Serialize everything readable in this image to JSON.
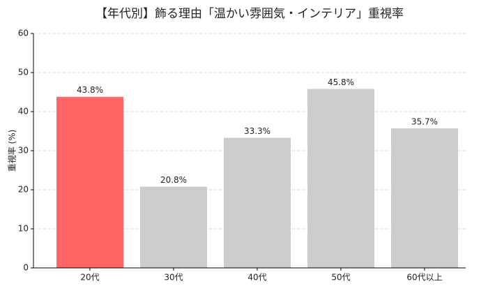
{
  "chart_data": {
    "type": "bar",
    "title": "【年代別】飾る理由「温かい雰囲気・インテリア」重視率",
    "y_label": "重視率 (%)",
    "categories": [
      "20代",
      "30代",
      "40代",
      "50代",
      "60代以上"
    ],
    "values": [
      43.8,
      20.8,
      33.3,
      45.8,
      35.7
    ],
    "value_labels": [
      "43.8%",
      "20.8%",
      "33.3%",
      "45.8%",
      "35.7%"
    ],
    "colors": [
      "#ff6666",
      "#cccccc",
      "#cccccc",
      "#cccccc",
      "#cccccc"
    ],
    "ylim": [
      0,
      60
    ],
    "yticks": [
      0,
      10,
      20,
      30,
      40,
      50,
      60
    ],
    "grid": true
  }
}
